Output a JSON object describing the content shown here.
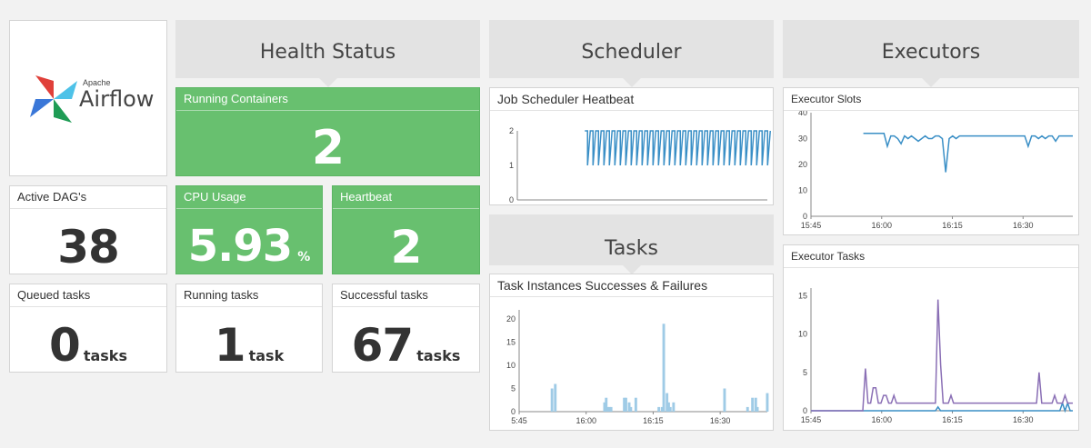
{
  "logo": {
    "brand_small": "Apache",
    "brand_large": "Airflow"
  },
  "sections": {
    "health": "Health Status",
    "scheduler": "Scheduler",
    "executors": "Executors",
    "tasks": "Tasks"
  },
  "colors": {
    "green": "#68c06f",
    "line_blue": "#3a8fc6",
    "bar_blue": "#9fcbe6",
    "purple": "#8a6fb5"
  },
  "tiles": {
    "running_containers": {
      "title": "Running Containers",
      "value": "2"
    },
    "cpu_usage": {
      "title": "CPU Usage",
      "value": "5.93",
      "unit": "%"
    },
    "heartbeat": {
      "title": "Heartbeat",
      "value": "2"
    },
    "active_dags": {
      "title": "Active DAG's",
      "value": "38"
    },
    "queued_tasks": {
      "title": "Queued tasks",
      "value": "0",
      "unit": "tasks"
    },
    "running_tasks": {
      "title": "Running tasks",
      "value": "1",
      "unit": "task"
    },
    "successful_tasks": {
      "title": "Successful tasks",
      "value": "67",
      "unit": "tasks"
    }
  },
  "chart_data": [
    {
      "id": "job_scheduler_heartbeat",
      "title": "Job Scheduler Heatbeat",
      "type": "line",
      "ylim": [
        0,
        2
      ],
      "yticks": [
        "0",
        "1",
        "2"
      ],
      "series": [
        {
          "pattern": "alternating 2 and 1 pulses",
          "start_fraction": 0.27,
          "high": 2,
          "low": 1
        }
      ]
    },
    {
      "id": "executor_slots",
      "title": "Executor Slots",
      "type": "line",
      "ylim": [
        0,
        40
      ],
      "yticks": [
        "0",
        "10",
        "20",
        "30",
        "40"
      ],
      "xticks": [
        "15:45",
        "16:00",
        "16:15",
        "16:30"
      ],
      "series": [
        {
          "values": [
            32,
            32,
            32,
            32,
            32,
            32,
            32,
            27,
            31,
            31,
            30,
            28,
            31,
            30,
            31,
            30,
            29,
            30,
            31,
            30,
            30,
            31,
            31,
            30,
            17,
            30,
            31,
            30,
            31,
            31,
            31,
            31,
            31,
            31,
            31,
            31,
            31,
            31,
            31,
            31,
            31,
            31,
            31,
            31,
            31,
            31,
            31,
            31,
            27,
            31,
            31,
            30,
            31,
            30,
            31,
            31,
            29,
            31,
            31,
            31,
            31,
            31
          ]
        }
      ]
    },
    {
      "id": "task_instances",
      "title": "Task Instances Successes & Failures",
      "type": "bar",
      "ylim": [
        0,
        22
      ],
      "yticks": [
        "0",
        "5",
        "10",
        "15",
        "20"
      ],
      "xticks": [
        "5:45",
        "16:00",
        "16:15",
        "16:30"
      ],
      "series": [
        {
          "values": [
            0,
            0,
            0,
            0,
            0,
            0,
            0,
            0,
            0,
            0,
            0,
            0,
            0,
            0,
            0,
            0,
            0,
            0,
            0,
            5,
            0,
            6,
            0,
            0,
            0,
            0,
            0,
            0,
            0,
            0,
            0,
            0,
            0,
            0,
            0,
            0,
            0,
            0,
            0,
            0,
            0,
            0,
            0,
            0,
            0,
            0,
            0,
            0,
            0,
            0,
            0,
            2,
            3,
            1,
            1,
            1,
            0,
            0,
            0,
            0,
            0,
            0,
            0,
            3,
            3,
            0,
            2,
            1,
            0,
            0,
            3,
            0,
            0,
            0,
            0,
            0,
            0,
            0,
            0,
            0,
            0,
            0,
            0,
            0,
            1,
            0,
            1,
            19,
            0,
            4,
            2,
            1,
            0,
            2,
            0,
            0,
            0,
            0,
            0,
            0,
            0,
            0,
            0,
            0,
            0,
            0,
            0,
            0,
            0,
            0,
            0,
            0,
            0,
            0,
            0,
            0,
            0,
            0,
            0,
            0,
            0,
            0,
            0,
            0,
            5,
            0,
            0,
            0,
            0,
            0,
            0,
            0,
            0,
            0,
            0,
            0,
            0,
            0,
            1,
            0,
            0,
            3,
            0,
            3,
            1,
            0,
            0,
            0,
            0,
            0,
            4
          ]
        }
      ]
    },
    {
      "id": "executor_tasks",
      "title": "Executor Tasks",
      "type": "line",
      "ylim": [
        0,
        16
      ],
      "yticks": [
        "0",
        "5",
        "10",
        "15"
      ],
      "xticks": [
        "15:45",
        "16:00",
        "16:15",
        "16:30"
      ],
      "series": [
        {
          "name": "purple",
          "values": [
            0,
            0,
            0,
            0,
            0,
            0,
            0,
            0,
            0,
            0,
            0,
            0,
            0,
            0,
            0,
            0,
            0,
            0,
            0,
            0,
            0,
            5.5,
            1,
            1,
            3,
            3,
            1,
            1,
            2,
            2,
            1,
            1,
            2,
            1,
            1,
            1,
            1,
            1,
            1,
            1,
            1,
            1,
            1,
            1,
            1,
            1,
            1,
            1,
            1,
            14.5,
            6,
            1,
            1,
            1,
            2,
            1,
            1,
            1,
            1,
            1,
            1,
            1,
            1,
            1,
            1,
            1,
            1,
            1,
            1,
            1,
            1,
            1,
            1,
            1,
            1,
            1,
            1,
            1,
            1,
            1,
            1,
            1,
            1,
            1,
            1,
            1,
            1,
            1,
            5,
            1,
            1,
            1,
            1,
            1,
            2,
            1,
            1,
            1,
            2,
            1,
            1,
            1
          ]
        },
        {
          "name": "blue",
          "values": [
            0,
            0,
            0,
            0,
            0,
            0,
            0,
            0,
            0,
            0,
            0,
            0,
            0,
            0,
            0,
            0,
            0,
            0,
            0,
            0,
            0,
            0,
            0,
            0,
            0,
            0,
            0,
            0,
            0,
            0,
            0,
            0,
            0,
            0,
            0,
            0,
            0,
            0,
            0,
            0,
            0,
            0,
            0,
            0,
            0,
            0,
            0,
            0,
            0,
            0.5,
            0,
            0,
            0,
            0,
            0,
            0,
            0,
            0,
            0,
            0,
            0,
            0,
            0,
            0,
            0,
            0,
            0,
            0,
            0,
            0,
            0,
            0,
            0,
            0,
            0,
            0,
            0,
            0,
            0,
            0,
            0,
            0,
            0,
            0,
            0,
            0,
            0,
            0,
            0,
            0,
            0,
            0,
            0,
            0,
            0,
            0,
            0,
            1,
            0,
            1,
            0,
            0
          ]
        }
      ]
    }
  ]
}
